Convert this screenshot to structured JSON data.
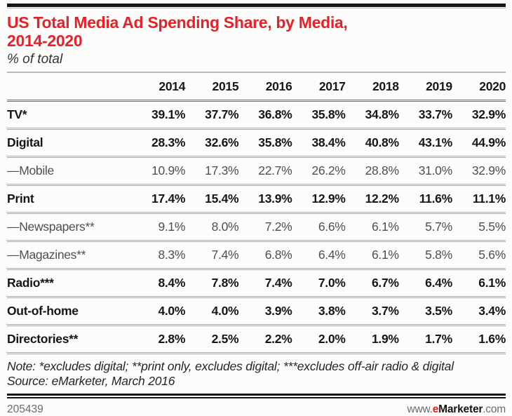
{
  "title": {
    "line1": "US Total Media Ad Spending Share, by Media,",
    "line2": "2014-2020",
    "subtitle": "% of total"
  },
  "chart_data": {
    "type": "table",
    "title": "US Total Media Ad Spending Share, by Media, 2014-2020",
    "subtitle": "% of total",
    "unit": "% of total",
    "columns": [
      "2014",
      "2015",
      "2016",
      "2017",
      "2018",
      "2019",
      "2020"
    ],
    "rows": [
      {
        "label": "TV*",
        "style": "bold",
        "values": [
          "39.1%",
          "37.7%",
          "36.8%",
          "35.8%",
          "34.8%",
          "33.7%",
          "32.9%"
        ]
      },
      {
        "label": "Digital",
        "style": "bold",
        "values": [
          "28.3%",
          "32.6%",
          "35.8%",
          "38.4%",
          "40.8%",
          "43.1%",
          "44.9%"
        ]
      },
      {
        "label": "—Mobile",
        "style": "sub",
        "values": [
          "10.9%",
          "17.3%",
          "22.7%",
          "26.2%",
          "28.8%",
          "31.0%",
          "32.9%"
        ]
      },
      {
        "label": "Print",
        "style": "bold",
        "values": [
          "17.4%",
          "15.4%",
          "13.9%",
          "12.9%",
          "12.2%",
          "11.6%",
          "11.1%"
        ]
      },
      {
        "label": "—Newspapers**",
        "style": "sub",
        "values": [
          "9.1%",
          "8.0%",
          "7.2%",
          "6.6%",
          "6.1%",
          "5.7%",
          "5.5%"
        ]
      },
      {
        "label": "—Magazines**",
        "style": "sub",
        "values": [
          "8.3%",
          "7.4%",
          "6.8%",
          "6.4%",
          "6.1%",
          "5.8%",
          "5.6%"
        ]
      },
      {
        "label": "Radio***",
        "style": "bold",
        "values": [
          "8.4%",
          "7.8%",
          "7.4%",
          "7.0%",
          "6.7%",
          "6.4%",
          "6.1%"
        ]
      },
      {
        "label": "Out-of-home",
        "style": "bold",
        "values": [
          "4.0%",
          "4.0%",
          "3.9%",
          "3.8%",
          "3.7%",
          "3.5%",
          "3.4%"
        ]
      },
      {
        "label": "Directories**",
        "style": "bold",
        "values": [
          "2.8%",
          "2.5%",
          "2.2%",
          "2.0%",
          "1.9%",
          "1.7%",
          "1.6%"
        ]
      }
    ]
  },
  "footer": {
    "note": "Note: *excludes digital; **print only, excludes digital; ***excludes off-air radio & digital",
    "source": "Source: eMarketer, March 2016",
    "chart_id": "205439",
    "site": {
      "www": "www.",
      "e": "e",
      "brand": "Marketer",
      "com": ".com"
    }
  },
  "colors": {
    "accent_red": "#e82129",
    "text_dark": "#171717",
    "sub_row_gray": "#4f4f4f",
    "separator_gray": "#a9a9a9",
    "rule_black": "#151515"
  }
}
